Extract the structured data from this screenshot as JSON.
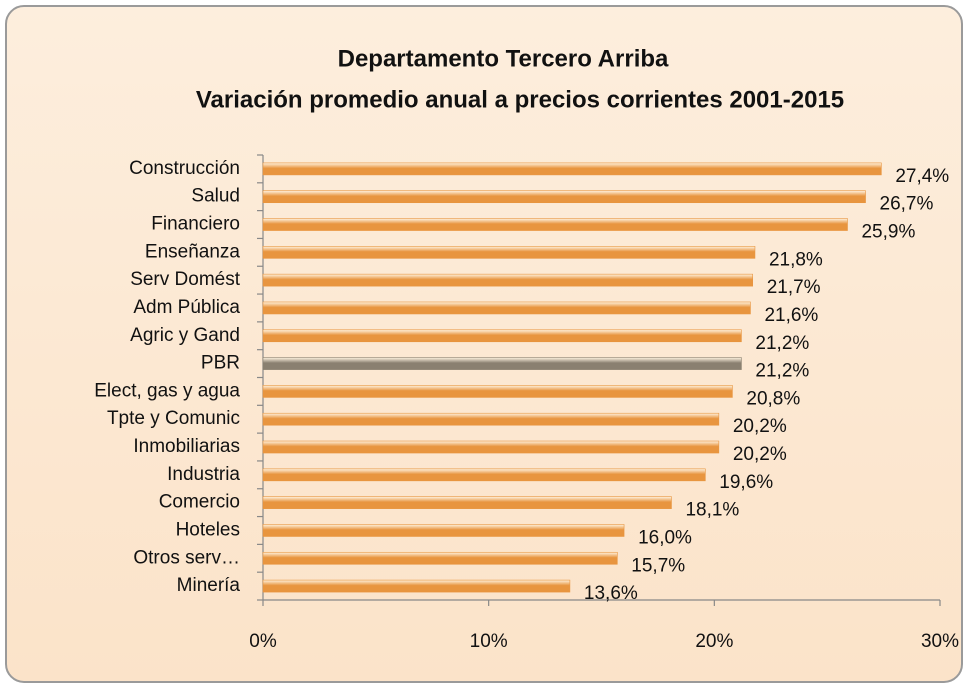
{
  "chart_data": {
    "type": "barh",
    "title": "Departamento Tercero Arriba",
    "subtitle": "Variación promedio anual a precios corrientes 2001-2015",
    "categories": [
      "Construcción",
      "Salud",
      "Financiero",
      "Enseñanza",
      "Serv Domést",
      "Adm Pública",
      "Agric y Gand",
      "PBR",
      "Elect, gas y agua",
      "Tpte y Comunic",
      "Inmobiliarias",
      "Industria",
      "Comercio",
      "Hoteles",
      "Otros serv…",
      "Minería"
    ],
    "values": [
      27.4,
      26.7,
      25.9,
      21.8,
      21.7,
      21.6,
      21.2,
      21.2,
      20.8,
      20.2,
      20.2,
      19.6,
      18.1,
      16.0,
      15.7,
      13.6
    ],
    "value_labels": [
      "27,4%",
      "26,7%",
      "25,9%",
      "21,8%",
      "21,7%",
      "21,6%",
      "21,2%",
      "21,2%",
      "20,8%",
      "20,2%",
      "20,2%",
      "19,6%",
      "18,1%",
      "16,0%",
      "15,7%",
      "13,6%"
    ],
    "colors": [
      "#e8953f",
      "#e8953f",
      "#e8953f",
      "#e8953f",
      "#e8953f",
      "#e8953f",
      "#e8953f",
      "#8a8070",
      "#e8953f",
      "#e8953f",
      "#e8953f",
      "#e8953f",
      "#e8953f",
      "#e8953f",
      "#e8953f",
      "#e8953f"
    ],
    "xlim": [
      0,
      30
    ],
    "xticks": [
      {
        "value": 0,
        "label": "0%"
      },
      {
        "value": 10,
        "label": "10%"
      },
      {
        "value": 20,
        "label": "20%"
      },
      {
        "value": 30,
        "label": "30%"
      }
    ]
  }
}
